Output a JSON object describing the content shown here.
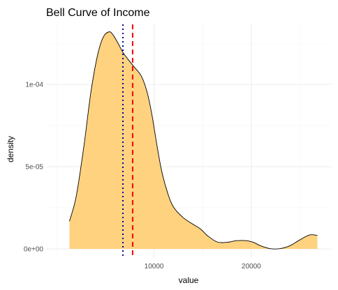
{
  "chart_data": {
    "type": "area",
    "title": "Bell Curve of Income",
    "xlabel": "value",
    "ylabel": "density",
    "xlim": [
      -1100,
      28200
    ],
    "ylim": [
      -5.5e-06,
      0.0001365
    ],
    "x_ticks": [
      10000,
      20000
    ],
    "x_tick_labels": [
      "10000",
      "20000"
    ],
    "y_ticks": [
      0,
      5e-05,
      0.0001
    ],
    "y_tick_labels": [
      "0e+00",
      "5e-05",
      "1e-04"
    ],
    "grid": true,
    "fill_color": "#ffd27f",
    "line_color": "#000000",
    "density": {
      "x": [
        1300,
        2000,
        2800,
        3500,
        4200,
        4800,
        5400,
        5800,
        6300,
        6800,
        7300,
        7900,
        8700,
        9300,
        9800,
        10300,
        10800,
        11400,
        12000,
        13000,
        14000,
        14800,
        15500,
        16500,
        17500,
        18500,
        19500,
        20300,
        21000,
        22000,
        23000,
        24000,
        25000,
        26000,
        26800
      ],
      "y": [
        1.68e-05,
        3.2e-05,
        6.3e-05,
        9.5e-05,
        0.000118,
        0.000129,
        0.000132,
        0.00013,
        0.000125,
        0.0001195,
        0.0001155,
        0.000111,
        0.000105,
        9.5e-05,
        8.1e-05,
        6.3e-05,
        4.7e-05,
        3.4e-05,
        2.55e-05,
        1.9e-05,
        1.5e-05,
        1.2e-05,
        8e-06,
        4.2e-06,
        4e-06,
        5e-06,
        5e-06,
        3.8e-06,
        1.8e-06,
        1e-07,
        2e-07,
        2e-06,
        5.5e-06,
        8.5e-06,
        8.2e-06
      ]
    },
    "reference_lines": [
      {
        "value": 6800,
        "color": "#00008b",
        "style": "dotted"
      },
      {
        "value": 7800,
        "color": "#ff0000",
        "style": "dashed"
      }
    ]
  }
}
